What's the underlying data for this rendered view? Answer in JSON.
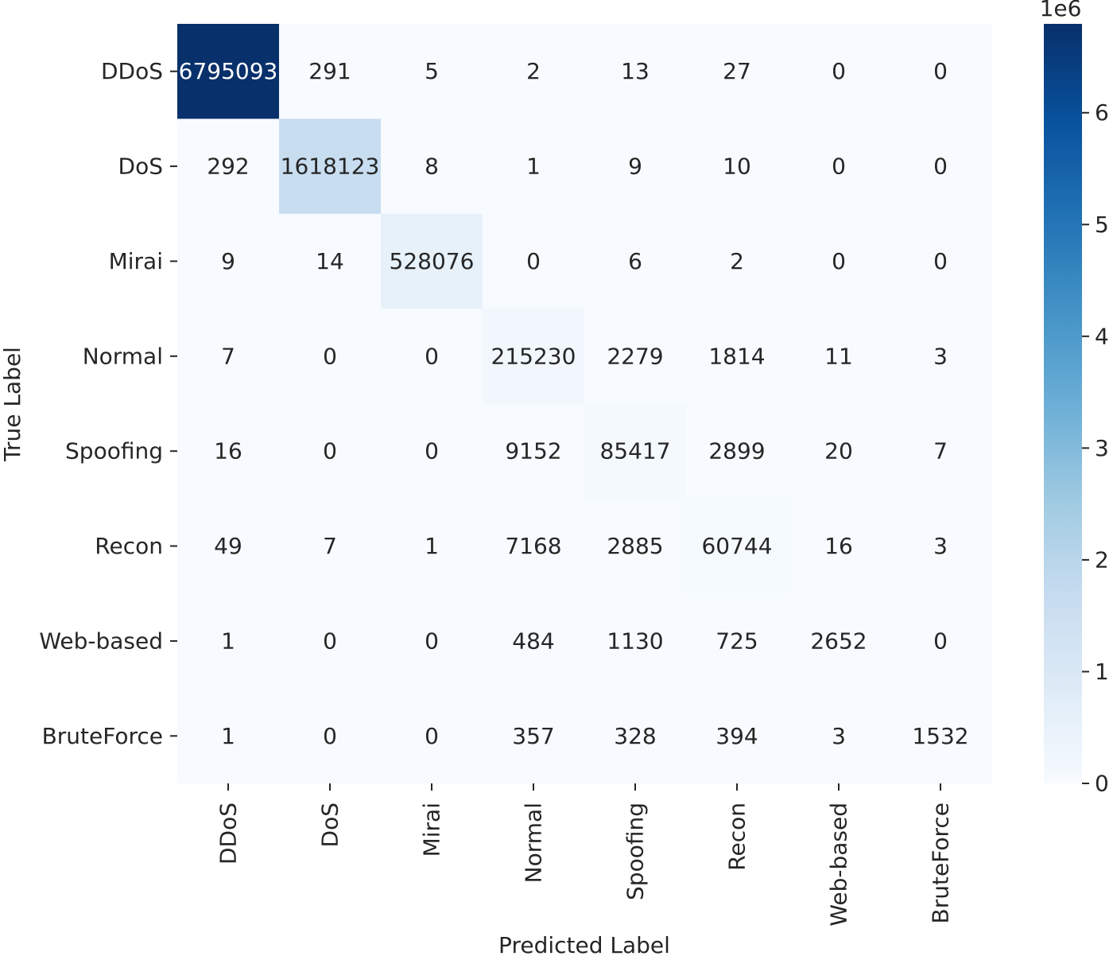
{
  "chart_data": {
    "type": "heatmap",
    "title": "",
    "xlabel": "Predicted Label",
    "ylabel": "True Label",
    "x_categories": [
      "DDoS",
      "DoS",
      "Mirai",
      "Normal",
      "Spoofing",
      "Recon",
      "Web-based",
      "BruteForce"
    ],
    "y_categories": [
      "DDoS",
      "DoS",
      "Mirai",
      "Normal",
      "Spoofing",
      "Recon",
      "Web-based",
      "BruteForce"
    ],
    "values": [
      [
        6795093,
        291,
        5,
        2,
        13,
        27,
        0,
        0
      ],
      [
        292,
        1618123,
        8,
        1,
        9,
        10,
        0,
        0
      ],
      [
        9,
        14,
        528076,
        0,
        6,
        2,
        0,
        0
      ],
      [
        7,
        0,
        0,
        215230,
        2279,
        1814,
        11,
        3
      ],
      [
        16,
        0,
        0,
        9152,
        85417,
        2899,
        20,
        7
      ],
      [
        49,
        7,
        1,
        7168,
        2885,
        60744,
        16,
        3
      ],
      [
        1,
        0,
        0,
        484,
        1130,
        725,
        2652,
        0
      ],
      [
        1,
        0,
        0,
        357,
        328,
        394,
        3,
        1532
      ]
    ],
    "colormap": "Blues",
    "colorbar": {
      "range": [
        0,
        6795093
      ],
      "ticks": [
        0,
        1,
        2,
        3,
        4,
        5,
        6
      ],
      "tick_scale": 1000000,
      "offset_label": "1e6"
    },
    "grid": false,
    "legend": "none"
  }
}
